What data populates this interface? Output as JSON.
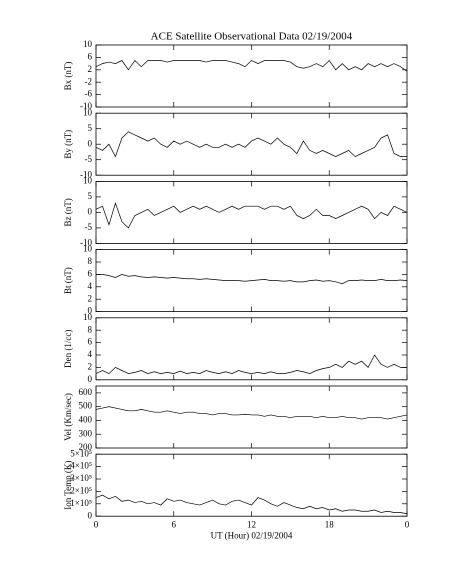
{
  "chart_data": [
    {
      "type": "line",
      "title": "ACE Satellite Observational Data  02/19/2004",
      "ylabel": "Bx (nT)",
      "xlim": [
        0,
        24
      ],
      "ylim": [
        -10,
        10
      ],
      "yticks": [
        -10,
        -6,
        -2,
        2,
        6,
        10
      ],
      "x": [
        0,
        0.5,
        1,
        1.5,
        2,
        2.5,
        3,
        3.5,
        4,
        4.5,
        5,
        5.5,
        6,
        6.5,
        7,
        7.5,
        8,
        8.5,
        9,
        9.5,
        10,
        10.5,
        11,
        11.5,
        12,
        12.5,
        13,
        13.5,
        14,
        14.5,
        15,
        15.5,
        16,
        16.5,
        17,
        17.5,
        18,
        18.5,
        19,
        19.5,
        20,
        20.5,
        21,
        21.5,
        22,
        22.5,
        23,
        23.5,
        24
      ],
      "series": [
        {
          "color": "#000000",
          "values": [
            3,
            4,
            4.5,
            4,
            5,
            2,
            5,
            3,
            5,
            5,
            5,
            4.5,
            5,
            5,
            5,
            5,
            5,
            4.5,
            5,
            5,
            5,
            4.5,
            4,
            3,
            5,
            4,
            5,
            5,
            5,
            5,
            4.5,
            3,
            2.5,
            3,
            4,
            3,
            5,
            2,
            4,
            2,
            3,
            2,
            4,
            3,
            4,
            3,
            4,
            3,
            1.5
          ]
        }
      ]
    },
    {
      "type": "line",
      "ylabel": "By (nT)",
      "xlim": [
        0,
        24
      ],
      "ylim": [
        -10,
        10
      ],
      "yticks": [
        -10,
        -5,
        0,
        5,
        10
      ],
      "x": [
        0,
        0.5,
        1,
        1.5,
        2,
        2.5,
        3,
        3.5,
        4,
        4.5,
        5,
        5.5,
        6,
        6.5,
        7,
        7.5,
        8,
        8.5,
        9,
        9.5,
        10,
        10.5,
        11,
        11.5,
        12,
        12.5,
        13,
        13.5,
        14,
        14.5,
        15,
        15.5,
        16,
        16.5,
        17,
        17.5,
        18,
        18.5,
        19,
        19.5,
        20,
        20.5,
        21,
        21.5,
        22,
        22.5,
        23,
        23.5,
        24
      ],
      "series": [
        {
          "color": "#000000",
          "values": [
            -1,
            -2,
            0,
            -4,
            2,
            4,
            3,
            2,
            1,
            2,
            0,
            -1,
            1,
            0,
            1,
            0,
            -1,
            0,
            -1,
            -1,
            0,
            -1,
            0,
            -1,
            1,
            2,
            1,
            0,
            2,
            0,
            -1,
            -3,
            1,
            -2,
            -3,
            -2,
            -3,
            -4,
            -3,
            -2,
            -4,
            -3,
            -2,
            -1,
            2,
            3,
            -3,
            -4,
            -4
          ]
        }
      ]
    },
    {
      "type": "line",
      "ylabel": "Bz (nT)",
      "xlim": [
        0,
        24
      ],
      "ylim": [
        -10,
        10
      ],
      "yticks": [
        -10,
        -5,
        0,
        5,
        10
      ],
      "x": [
        0,
        0.5,
        1,
        1.5,
        2,
        2.5,
        3,
        3.5,
        4,
        4.5,
        5,
        5.5,
        6,
        6.5,
        7,
        7.5,
        8,
        8.5,
        9,
        9.5,
        10,
        10.5,
        11,
        11.5,
        12,
        12.5,
        13,
        13.5,
        14,
        14.5,
        15,
        15.5,
        16,
        16.5,
        17,
        17.5,
        18,
        18.5,
        19,
        19.5,
        20,
        20.5,
        21,
        21.5,
        22,
        22.5,
        23,
        23.5,
        24
      ],
      "series": [
        {
          "color": "#000000",
          "values": [
            1,
            2,
            -4,
            3,
            -3,
            -5,
            -1,
            0,
            1,
            -1,
            0,
            1,
            2,
            0,
            1,
            2,
            1,
            2,
            1,
            0,
            1,
            2,
            1,
            2,
            2,
            2,
            1,
            2,
            2,
            1,
            2,
            -1,
            -2,
            -1,
            1,
            -1,
            -1,
            -2,
            -1,
            0,
            1,
            2,
            1,
            -2,
            0,
            -1,
            2,
            1,
            0
          ]
        }
      ]
    },
    {
      "type": "line",
      "ylabel": "Bt (nT)",
      "xlim": [
        0,
        24
      ],
      "ylim": [
        0,
        10
      ],
      "yticks": [
        0,
        2,
        4,
        6,
        8,
        10
      ],
      "x": [
        0,
        0.5,
        1,
        1.5,
        2,
        2.5,
        3,
        3.5,
        4,
        4.5,
        5,
        5.5,
        6,
        6.5,
        7,
        7.5,
        8,
        8.5,
        9,
        9.5,
        10,
        10.5,
        11,
        11.5,
        12,
        12.5,
        13,
        13.5,
        14,
        14.5,
        15,
        15.5,
        16,
        16.5,
        17,
        17.5,
        18,
        18.5,
        19,
        19.5,
        20,
        20.5,
        21,
        21.5,
        22,
        22.5,
        23,
        23.5,
        24
      ],
      "series": [
        {
          "color": "#000000",
          "values": [
            6,
            6,
            5.8,
            5.5,
            6,
            5.7,
            5.8,
            5.6,
            5.5,
            5.6,
            5.5,
            5.4,
            5.5,
            5.4,
            5.3,
            5.3,
            5.2,
            5.3,
            5.2,
            5.1,
            5,
            5,
            5,
            4.9,
            5,
            5.1,
            5.2,
            5,
            5,
            4.9,
            5,
            4.8,
            4.8,
            5,
            5.1,
            4.9,
            5,
            4.8,
            4.5,
            5,
            5,
            5.1,
            5,
            5,
            5.2,
            5,
            5,
            5.1,
            5
          ]
        }
      ]
    },
    {
      "type": "line",
      "ylabel": "Den (1/cc)",
      "xlim": [
        0,
        24
      ],
      "ylim": [
        0,
        10
      ],
      "yticks": [
        0,
        2,
        4,
        6,
        8,
        10
      ],
      "x": [
        0,
        0.5,
        1,
        1.5,
        2,
        2.5,
        3,
        3.5,
        4,
        4.5,
        5,
        5.5,
        6,
        6.5,
        7,
        7.5,
        8,
        8.5,
        9,
        9.5,
        10,
        10.5,
        11,
        11.5,
        12,
        12.5,
        13,
        13.5,
        14,
        14.5,
        15,
        15.5,
        16,
        16.5,
        17,
        17.5,
        18,
        18.5,
        19,
        19.5,
        20,
        20.5,
        21,
        21.5,
        22,
        22.5,
        23,
        23.5,
        24
      ],
      "series": [
        {
          "color": "#000000",
          "values": [
            1,
            1.5,
            1,
            2,
            1.5,
            1,
            1.2,
            1.5,
            1,
            1.3,
            1,
            1.2,
            1,
            1.4,
            1,
            1.2,
            1,
            1.5,
            1.2,
            1,
            1.3,
            1,
            1.5,
            1.2,
            1,
            1.2,
            1,
            1.3,
            1,
            1,
            1.2,
            1.5,
            1.3,
            1,
            1.5,
            1.8,
            2,
            2.5,
            2,
            3,
            2.5,
            3,
            2,
            4,
            2.5,
            2,
            2.5,
            2,
            2
          ]
        }
      ]
    },
    {
      "type": "line",
      "ylabel": "Vel (Km/sec)",
      "xlim": [
        0,
        24
      ],
      "ylim": [
        200,
        650
      ],
      "yticks": [
        200,
        300,
        400,
        500,
        600
      ],
      "x": [
        0,
        0.5,
        1,
        1.5,
        2,
        2.5,
        3,
        3.5,
        4,
        4.5,
        5,
        5.5,
        6,
        6.5,
        7,
        7.5,
        8,
        8.5,
        9,
        9.5,
        10,
        10.5,
        11,
        11.5,
        12,
        12.5,
        13,
        13.5,
        14,
        14.5,
        15,
        15.5,
        16,
        16.5,
        17,
        17.5,
        18,
        18.5,
        19,
        19.5,
        20,
        20.5,
        21,
        21.5,
        22,
        22.5,
        23,
        23.5,
        24
      ],
      "series": [
        {
          "color": "#000000",
          "values": [
            480,
            490,
            500,
            490,
            480,
            470,
            470,
            480,
            470,
            460,
            460,
            470,
            460,
            450,
            460,
            460,
            450,
            450,
            440,
            450,
            450,
            440,
            440,
            445,
            440,
            440,
            430,
            440,
            430,
            430,
            420,
            430,
            430,
            430,
            420,
            430,
            420,
            420,
            430,
            420,
            420,
            410,
            420,
            420,
            420,
            410,
            420,
            430,
            440
          ]
        }
      ]
    },
    {
      "type": "line",
      "ylabel": "Ion Temp (K)",
      "xlabel": "UT (Hour)  02/19/2004",
      "xlim": [
        0,
        24
      ],
      "ylim": [
        0,
        500000
      ],
      "yticks": [
        0,
        {
          "value": 100000,
          "label": "1×10⁵"
        },
        {
          "value": 200000,
          "label": "2×10⁵"
        },
        {
          "value": 300000,
          "label": "3×10⁵"
        },
        {
          "value": 400000,
          "label": "4×10⁵"
        },
        {
          "value": 500000,
          "label": "5×10⁵"
        }
      ],
      "xticks": [
        0,
        6,
        12,
        18,
        {
          "value": 24,
          "label": "0"
        }
      ],
      "x": [
        0,
        0.5,
        1,
        1.5,
        2,
        2.5,
        3,
        3.5,
        4,
        4.5,
        5,
        5.5,
        6,
        6.5,
        7,
        7.5,
        8,
        8.5,
        9,
        9.5,
        10,
        10.5,
        11,
        11.5,
        12,
        12.5,
        13,
        13.5,
        14,
        14.5,
        15,
        15.5,
        16,
        16.5,
        17,
        17.5,
        18,
        18.5,
        19,
        19.5,
        20,
        20.5,
        21,
        21.5,
        22,
        22.5,
        23,
        23.5,
        24
      ],
      "series": [
        {
          "color": "#000000",
          "values": [
            150000,
            170000,
            140000,
            160000,
            120000,
            130000,
            110000,
            120000,
            100000,
            110000,
            90000,
            140000,
            120000,
            130000,
            110000,
            100000,
            90000,
            110000,
            130000,
            100000,
            90000,
            120000,
            130000,
            110000,
            90000,
            150000,
            130000,
            100000,
            80000,
            110000,
            90000,
            70000,
            60000,
            80000,
            60000,
            70000,
            50000,
            60000,
            40000,
            50000,
            50000,
            40000,
            40000,
            50000,
            30000,
            40000,
            30000,
            30000,
            20000
          ]
        }
      ]
    }
  ]
}
